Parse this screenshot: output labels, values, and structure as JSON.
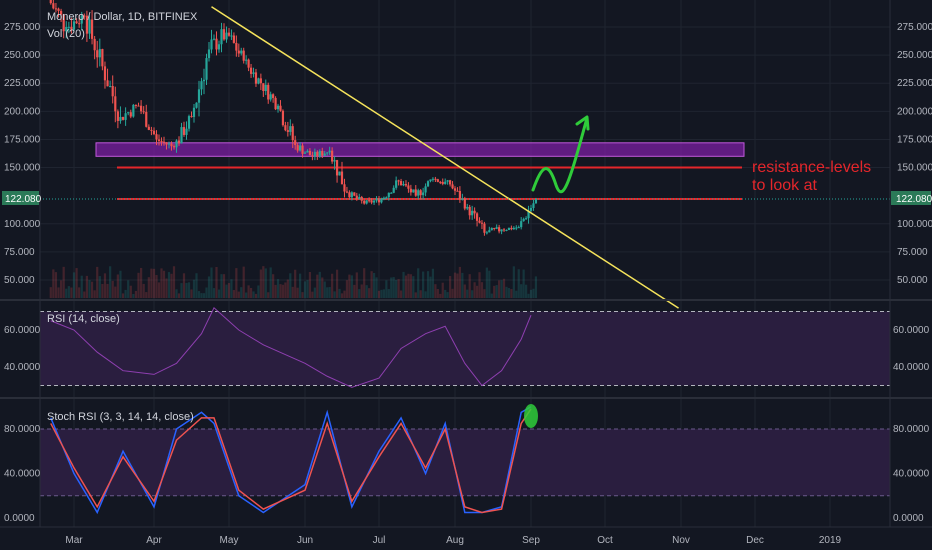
{
  "header": {
    "symbol": "Monero / Dollar, 1D, BITFINEX",
    "volume_label": "Vol (20)"
  },
  "colors": {
    "background": "#131722",
    "grid": "#1f2430",
    "up": "#26a69a",
    "down": "#ef5350",
    "trendline": "#f5e35b",
    "resistance": "#e4262b",
    "zone_fill": "#7b1fa2",
    "zone_stroke": "#c158dc",
    "rsi_line": "#8e3fb0",
    "rsi_band": "#2a1e3f",
    "stoch_k": "#2962ff",
    "stoch_d": "#ef5350",
    "arrow": "#2fcc3a"
  },
  "chart_data": [
    {
      "type": "candlestick",
      "title": "Monero / Dollar, 1D, BITFINEX",
      "x_ticks": [
        "Mar",
        "Apr",
        "May",
        "Jun",
        "Jul",
        "Aug",
        "Sep",
        "Oct",
        "Nov",
        "Dec",
        "2019"
      ],
      "y_ticks": [
        "275.000",
        "250.000",
        "225.000",
        "200.000",
        "175.000",
        "150.000",
        "100.000",
        "75.000",
        "50.000"
      ],
      "ylim": [
        25,
        295
      ],
      "last_price": "122.080",
      "ohlc_weekly": [
        {
          "date": "2018-02-20",
          "o": 300,
          "h": 330,
          "l": 265,
          "c": 275
        },
        {
          "date": "2018-02-27",
          "o": 275,
          "h": 300,
          "l": 255,
          "c": 285
        },
        {
          "date": "2018-03-06",
          "o": 285,
          "h": 290,
          "l": 230,
          "c": 240
        },
        {
          "date": "2018-03-13",
          "o": 240,
          "h": 245,
          "l": 185,
          "c": 195
        },
        {
          "date": "2018-03-20",
          "o": 195,
          "h": 215,
          "l": 180,
          "c": 205
        },
        {
          "date": "2018-03-27",
          "o": 205,
          "h": 210,
          "l": 170,
          "c": 175
        },
        {
          "date": "2018-04-03",
          "o": 175,
          "h": 185,
          "l": 160,
          "c": 168
        },
        {
          "date": "2018-04-10",
          "o": 168,
          "h": 200,
          "l": 160,
          "c": 195
        },
        {
          "date": "2018-04-17",
          "o": 195,
          "h": 265,
          "l": 190,
          "c": 255
        },
        {
          "date": "2018-04-24",
          "o": 255,
          "h": 295,
          "l": 245,
          "c": 270
        },
        {
          "date": "2018-05-01",
          "o": 270,
          "h": 275,
          "l": 235,
          "c": 245
        },
        {
          "date": "2018-05-08",
          "o": 245,
          "h": 250,
          "l": 215,
          "c": 225
        },
        {
          "date": "2018-05-15",
          "o": 225,
          "h": 230,
          "l": 195,
          "c": 205
        },
        {
          "date": "2018-05-22",
          "o": 205,
          "h": 210,
          "l": 160,
          "c": 170
        },
        {
          "date": "2018-05-29",
          "o": 170,
          "h": 175,
          "l": 150,
          "c": 160
        },
        {
          "date": "2018-06-05",
          "o": 160,
          "h": 170,
          "l": 150,
          "c": 165
        },
        {
          "date": "2018-06-12",
          "o": 165,
          "h": 168,
          "l": 120,
          "c": 128
        },
        {
          "date": "2018-06-19",
          "o": 128,
          "h": 130,
          "l": 112,
          "c": 118
        },
        {
          "date": "2018-06-26",
          "o": 118,
          "h": 125,
          "l": 110,
          "c": 122
        },
        {
          "date": "2018-07-03",
          "o": 122,
          "h": 142,
          "l": 118,
          "c": 138
        },
        {
          "date": "2018-07-10",
          "o": 138,
          "h": 140,
          "l": 118,
          "c": 125
        },
        {
          "date": "2018-07-17",
          "o": 125,
          "h": 145,
          "l": 118,
          "c": 140
        },
        {
          "date": "2018-07-24",
          "o": 140,
          "h": 148,
          "l": 130,
          "c": 135
        },
        {
          "date": "2018-07-31",
          "o": 135,
          "h": 138,
          "l": 112,
          "c": 115
        },
        {
          "date": "2018-08-07",
          "o": 115,
          "h": 118,
          "l": 85,
          "c": 92
        },
        {
          "date": "2018-08-14",
          "o": 92,
          "h": 100,
          "l": 82,
          "c": 95
        },
        {
          "date": "2018-08-21",
          "o": 95,
          "h": 102,
          "l": 90,
          "c": 97
        },
        {
          "date": "2018-08-28",
          "o": 97,
          "h": 123,
          "l": 95,
          "c": 122
        }
      ],
      "trendline": [
        {
          "date": "2018-04-24",
          "value": 293
        },
        {
          "date": "2018-10-31",
          "value": 25
        }
      ],
      "resistance_levels": [
        150,
        122
      ],
      "resistance_zone": [
        160,
        172
      ],
      "annotation": [
        "resistance-levels",
        "to look at"
      ]
    },
    {
      "type": "line",
      "title": "RSI (14, close)",
      "y_ticks": [
        "60.0000",
        "40.0000"
      ],
      "band": [
        30,
        70
      ],
      "ylim": [
        20,
        80
      ],
      "x": [
        "Feb-20",
        "Mar-01",
        "Mar-10",
        "Mar-20",
        "Apr-01",
        "Apr-10",
        "Apr-20",
        "Apr-25",
        "May-05",
        "May-15",
        "Jun-01",
        "Jun-10",
        "Jun-20",
        "Jul-01",
        "Jul-10",
        "Jul-20",
        "Jul-28",
        "Aug-05",
        "Aug-12",
        "Aug-20",
        "Aug-28",
        "Sep-01"
      ],
      "values": [
        65,
        60,
        48,
        38,
        36,
        42,
        58,
        72,
        60,
        52,
        42,
        35,
        29,
        34,
        50,
        58,
        62,
        42,
        30,
        38,
        55,
        68
      ]
    },
    {
      "type": "line",
      "title": "Stoch RSI (3, 3, 14, 14, close)",
      "y_ticks": [
        "80.0000",
        "40.0000",
        "0.0000"
      ],
      "band": [
        20,
        80
      ],
      "ylim": [
        -5,
        105
      ],
      "x": [
        "Feb-20",
        "Mar-01",
        "Mar-10",
        "Mar-20",
        "Apr-01",
        "Apr-10",
        "Apr-20",
        "Apr-25",
        "May-05",
        "May-15",
        "Jun-01",
        "Jun-10",
        "Jun-20",
        "Jul-01",
        "Jul-10",
        "Jul-20",
        "Jul-28",
        "Aug-05",
        "Aug-12",
        "Aug-20",
        "Aug-28",
        "Sep-01"
      ],
      "series": [
        {
          "values": [
            90,
            40,
            5,
            60,
            10,
            80,
            95,
            85,
            20,
            5,
            30,
            95,
            10,
            60,
            90,
            40,
            85,
            5,
            5,
            10,
            95,
            100
          ]
        },
        {
          "values": [
            85,
            45,
            10,
            55,
            15,
            70,
            90,
            90,
            25,
            8,
            25,
            85,
            15,
            55,
            85,
            45,
            80,
            10,
            5,
            8,
            85,
            98
          ]
        }
      ]
    }
  ]
}
